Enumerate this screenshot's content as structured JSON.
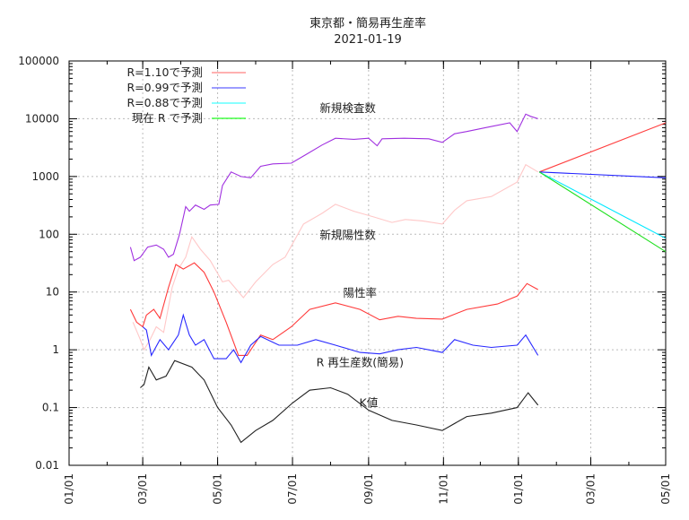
{
  "chart_data": {
    "type": "line",
    "title": "東京都・簡易再生産率",
    "subtitle": "2021-01-19",
    "xlabel": "",
    "ylabel": "",
    "yscale": "log",
    "ylim": [
      0.01,
      100000
    ],
    "xlim": [
      "2020-01-01",
      "2021-05-01"
    ],
    "grid": true,
    "legend_position": "top-left",
    "yticks": [
      {
        "v": 100000,
        "label": "100000"
      },
      {
        "v": 10000,
        "label": "10000"
      },
      {
        "v": 1000,
        "label": "1000"
      },
      {
        "v": 100,
        "label": "100"
      },
      {
        "v": 10,
        "label": "10"
      },
      {
        "v": 1,
        "label": "1"
      },
      {
        "v": 0.1,
        "label": "0.1"
      },
      {
        "v": 0.01,
        "label": "0.01"
      }
    ],
    "xticks": [
      {
        "d": "2020-01-01",
        "label": "01/01"
      },
      {
        "d": "2020-03-01",
        "label": "03/01"
      },
      {
        "d": "2020-05-01",
        "label": "05/01"
      },
      {
        "d": "2020-07-01",
        "label": "07/01"
      },
      {
        "d": "2020-09-01",
        "label": "09/01"
      },
      {
        "d": "2020-11-01",
        "label": "11/01"
      },
      {
        "d": "2021-01-01",
        "label": "01/01"
      },
      {
        "d": "2021-03-01",
        "label": "03/01"
      },
      {
        "d": "2021-05-01",
        "label": "05/01"
      }
    ],
    "series": [
      {
        "name": "新規検査数",
        "color": "#a030e0",
        "label_anchor": [
          "2020-08-15",
          15000
        ],
        "points": [
          [
            "2020-02-20",
            60
          ],
          [
            "2020-02-23",
            35
          ],
          [
            "2020-02-28",
            40
          ],
          [
            "2020-03-05",
            60
          ],
          [
            "2020-03-12",
            65
          ],
          [
            "2020-03-18",
            55
          ],
          [
            "2020-03-22",
            40
          ],
          [
            "2020-03-26",
            45
          ],
          [
            "2020-03-31",
            100
          ],
          [
            "2020-04-05",
            300
          ],
          [
            "2020-04-08",
            250
          ],
          [
            "2020-04-13",
            320
          ],
          [
            "2020-04-20",
            270
          ],
          [
            "2020-04-25",
            320
          ],
          [
            "2020-05-02",
            330
          ],
          [
            "2020-05-05",
            700
          ],
          [
            "2020-05-12",
            1200
          ],
          [
            "2020-05-20",
            1000
          ],
          [
            "2020-05-28",
            950
          ],
          [
            "2020-06-05",
            1500
          ],
          [
            "2020-06-15",
            1650
          ],
          [
            "2020-06-30",
            1700
          ],
          [
            "2020-07-12",
            2400
          ],
          [
            "2020-07-25",
            3500
          ],
          [
            "2020-08-05",
            4600
          ],
          [
            "2020-08-20",
            4400
          ],
          [
            "2020-09-01",
            4600
          ],
          [
            "2020-09-08",
            3400
          ],
          [
            "2020-09-12",
            4500
          ],
          [
            "2020-09-30",
            4600
          ],
          [
            "2020-10-20",
            4500
          ],
          [
            "2020-10-31",
            3900
          ],
          [
            "2020-11-10",
            5500
          ],
          [
            "2020-11-20",
            6000
          ],
          [
            "2020-12-05",
            7000
          ],
          [
            "2020-12-25",
            8500
          ],
          [
            "2020-12-31",
            6000
          ],
          [
            "2021-01-07",
            12000
          ],
          [
            "2021-01-11",
            11000
          ],
          [
            "2021-01-17",
            10000
          ]
        ]
      },
      {
        "name": "新規陽性数",
        "color": "#ffc8c8",
        "label_anchor": [
          "2020-08-15",
          95
        ],
        "points": [
          [
            "2020-02-22",
            3
          ],
          [
            "2020-02-28",
            1.5
          ],
          [
            "2020-03-02",
            1
          ],
          [
            "2020-03-07",
            1.5
          ],
          [
            "2020-03-12",
            2.5
          ],
          [
            "2020-03-18",
            2
          ],
          [
            "2020-03-25",
            12
          ],
          [
            "2020-03-30",
            25
          ],
          [
            "2020-04-05",
            40
          ],
          [
            "2020-04-10",
            90
          ],
          [
            "2020-04-17",
            55
          ],
          [
            "2020-04-25",
            35
          ],
          [
            "2020-05-05",
            15
          ],
          [
            "2020-05-10",
            16
          ],
          [
            "2020-05-22",
            8
          ],
          [
            "2020-06-01",
            15
          ],
          [
            "2020-06-15",
            30
          ],
          [
            "2020-06-25",
            40
          ],
          [
            "2020-07-10",
            150
          ],
          [
            "2020-07-25",
            230
          ],
          [
            "2020-08-05",
            330
          ],
          [
            "2020-08-20",
            250
          ],
          [
            "2020-09-05",
            200
          ],
          [
            "2020-09-20",
            160
          ],
          [
            "2020-10-01",
            180
          ],
          [
            "2020-10-15",
            170
          ],
          [
            "2020-10-31",
            150
          ],
          [
            "2020-11-10",
            260
          ],
          [
            "2020-11-20",
            380
          ],
          [
            "2020-12-10",
            450
          ],
          [
            "2020-12-31",
            800
          ],
          [
            "2021-01-07",
            1600
          ],
          [
            "2021-01-17",
            1200
          ]
        ]
      },
      {
        "name": "陽性率",
        "color": "#ff3a3a",
        "label_anchor": [
          "2020-08-25",
          9.5
        ],
        "points": [
          [
            "2020-02-20",
            5
          ],
          [
            "2020-02-25",
            3
          ],
          [
            "2020-03-01",
            2.5
          ],
          [
            "2020-03-04",
            4
          ],
          [
            "2020-03-10",
            5
          ],
          [
            "2020-03-15",
            3.5
          ],
          [
            "2020-03-22",
            12
          ],
          [
            "2020-03-28",
            30
          ],
          [
            "2020-04-03",
            25
          ],
          [
            "2020-04-12",
            32
          ],
          [
            "2020-04-20",
            22
          ],
          [
            "2020-04-28",
            10
          ],
          [
            "2020-05-08",
            3
          ],
          [
            "2020-05-18",
            0.8
          ],
          [
            "2020-05-25",
            0.8
          ],
          [
            "2020-06-05",
            1.8
          ],
          [
            "2020-06-15",
            1.5
          ],
          [
            "2020-06-30",
            2.5
          ],
          [
            "2020-07-15",
            5
          ],
          [
            "2020-08-05",
            6.5
          ],
          [
            "2020-08-25",
            5
          ],
          [
            "2020-09-10",
            3.3
          ],
          [
            "2020-09-25",
            3.8
          ],
          [
            "2020-10-10",
            3.5
          ],
          [
            "2020-10-31",
            3.4
          ],
          [
            "2020-11-20",
            5
          ],
          [
            "2020-12-15",
            6.2
          ],
          [
            "2020-12-31",
            8.5
          ],
          [
            "2021-01-08",
            14
          ],
          [
            "2021-01-17",
            11
          ]
        ]
      },
      {
        "name": "R 再生産数(簡易)",
        "color": "#2828ff",
        "label_anchor": [
          "2020-08-25",
          0.6
        ],
        "points": [
          [
            "2020-03-01",
            2.5
          ],
          [
            "2020-03-04",
            2.2
          ],
          [
            "2020-03-08",
            0.8
          ],
          [
            "2020-03-15",
            1.5
          ],
          [
            "2020-03-22",
            1.0
          ],
          [
            "2020-03-30",
            1.8
          ],
          [
            "2020-04-03",
            4
          ],
          [
            "2020-04-08",
            1.8
          ],
          [
            "2020-04-13",
            1.2
          ],
          [
            "2020-04-20",
            1.5
          ],
          [
            "2020-04-28",
            0.7
          ],
          [
            "2020-05-08",
            0.7
          ],
          [
            "2020-05-14",
            1.0
          ],
          [
            "2020-05-20",
            0.6
          ],
          [
            "2020-05-28",
            1.2
          ],
          [
            "2020-06-05",
            1.7
          ],
          [
            "2020-06-20",
            1.2
          ],
          [
            "2020-07-05",
            1.2
          ],
          [
            "2020-07-20",
            1.5
          ],
          [
            "2020-08-05",
            1.2
          ],
          [
            "2020-08-25",
            0.9
          ],
          [
            "2020-09-10",
            0.85
          ],
          [
            "2020-09-25",
            1.0
          ],
          [
            "2020-10-10",
            1.1
          ],
          [
            "2020-10-31",
            0.9
          ],
          [
            "2020-11-10",
            1.5
          ],
          [
            "2020-11-25",
            1.2
          ],
          [
            "2020-12-10",
            1.1
          ],
          [
            "2020-12-31",
            1.2
          ],
          [
            "2021-01-07",
            1.8
          ],
          [
            "2021-01-17",
            0.8
          ]
        ]
      },
      {
        "name": "K値",
        "color": "#202020",
        "label_anchor": [
          "2020-09-01",
          0.12
        ],
        "points": [
          [
            "2020-02-28",
            0.22
          ],
          [
            "2020-03-02",
            0.25
          ],
          [
            "2020-03-06",
            0.5
          ],
          [
            "2020-03-12",
            0.3
          ],
          [
            "2020-03-20",
            0.35
          ],
          [
            "2020-03-27",
            0.65
          ],
          [
            "2020-04-10",
            0.5
          ],
          [
            "2020-04-20",
            0.3
          ],
          [
            "2020-05-01",
            0.1
          ],
          [
            "2020-05-12",
            0.05
          ],
          [
            "2020-05-20",
            0.025
          ],
          [
            "2020-06-01",
            0.04
          ],
          [
            "2020-06-15",
            0.06
          ],
          [
            "2020-07-01",
            0.12
          ],
          [
            "2020-07-15",
            0.2
          ],
          [
            "2020-08-01",
            0.22
          ],
          [
            "2020-08-15",
            0.17
          ],
          [
            "2020-09-01",
            0.09
          ],
          [
            "2020-09-20",
            0.06
          ],
          [
            "2020-10-10",
            0.05
          ],
          [
            "2020-10-31",
            0.04
          ],
          [
            "2020-11-20",
            0.07
          ],
          [
            "2020-12-10",
            0.08
          ],
          [
            "2020-12-31",
            0.1
          ],
          [
            "2021-01-09",
            0.18
          ],
          [
            "2021-01-17",
            0.11
          ]
        ]
      }
    ],
    "projections": [
      {
        "name": "R=1.10で予測",
        "color": "#ff4040",
        "legend_color": "#ff8080",
        "points": [
          [
            "2021-01-18",
            1200
          ],
          [
            "2021-05-01",
            8500
          ]
        ]
      },
      {
        "name": "R=0.99で予測",
        "color": "#2020ff",
        "legend_color": "#6060ff",
        "points": [
          [
            "2021-01-18",
            1200
          ],
          [
            "2021-05-01",
            950
          ]
        ]
      },
      {
        "name": "R=0.88で予測",
        "color": "#00e8ff",
        "legend_color": "#40ffff",
        "points": [
          [
            "2021-01-18",
            1200
          ],
          [
            "2021-05-01",
            85
          ]
        ]
      },
      {
        "name": "現在 R で予測",
        "color": "#20e020",
        "legend_color": "#20ff20",
        "points": [
          [
            "2021-01-18",
            1200
          ],
          [
            "2021-05-01",
            50
          ]
        ]
      }
    ]
  }
}
